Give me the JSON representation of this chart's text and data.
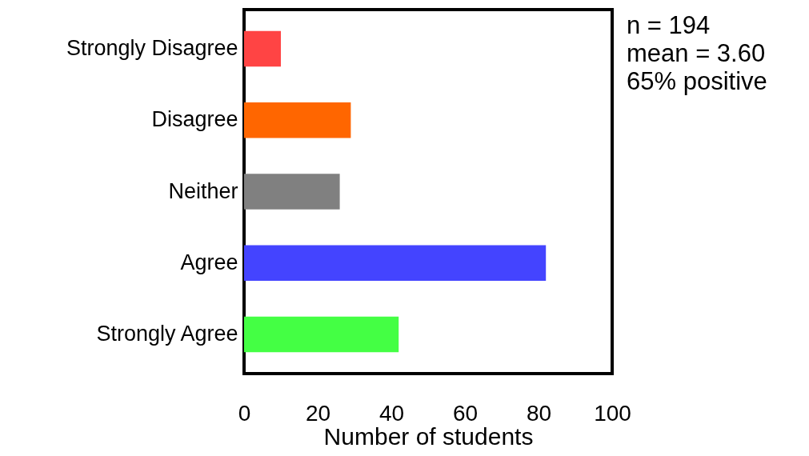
{
  "chart_data": {
    "type": "bar",
    "orientation": "horizontal",
    "categories": [
      "Strongly Disagree",
      "Disagree",
      "Neither",
      "Agree",
      "Strongly Agree"
    ],
    "values": [
      10,
      29,
      26,
      82,
      42
    ],
    "colors": [
      "#ff4444",
      "#ff6600",
      "#808080",
      "#4444ff",
      "#44ff44"
    ],
    "xlim": [
      0,
      100
    ],
    "xticks": [
      0,
      20,
      40,
      60,
      80,
      100
    ],
    "xlabel": "Number of students",
    "annotations": [
      "n = 194",
      "mean = 3.60",
      "65% positive"
    ],
    "tick_labels": "xy"
  }
}
